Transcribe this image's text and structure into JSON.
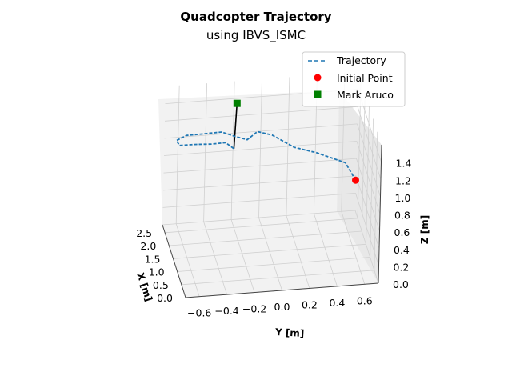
{
  "chart_data": {
    "type": "line",
    "title": "Quadcopter Trajectory",
    "subtitle": "using IBVS_ISMC",
    "xlabel": "X [m]",
    "ylabel": "Y [m]",
    "zlabel": "Z [m]",
    "xlim": [
      0.0,
      2.8
    ],
    "ylim": [
      -0.7,
      0.7
    ],
    "zlim": [
      0.0,
      1.6
    ],
    "x_ticks": [
      "0.0",
      "0.5",
      "1.0",
      "1.5",
      "2.0",
      "2.5"
    ],
    "y_ticks": [
      "−0.6",
      "−0.4",
      "−0.2",
      "0.0",
      "0.2",
      "0.4",
      "0.6"
    ],
    "z_ticks": [
      "0.0",
      "0.2",
      "0.4",
      "0.6",
      "0.8",
      "1.0",
      "1.2",
      "1.4"
    ],
    "grid": true,
    "legend_position": "top-right",
    "series": [
      {
        "name": "Trajectory",
        "style": "dashed",
        "color": "#1f77b4",
        "points": [
          [
            1.6,
            0.62,
            0.72
          ],
          [
            1.7,
            0.55,
            0.9
          ],
          [
            1.9,
            0.35,
            0.98
          ],
          [
            2.1,
            0.2,
            1.0
          ],
          [
            2.3,
            0.05,
            1.1
          ],
          [
            2.4,
            -0.05,
            1.12
          ],
          [
            2.45,
            -0.12,
            1.02
          ],
          [
            2.5,
            -0.2,
            1.05
          ],
          [
            2.55,
            -0.3,
            1.1
          ],
          [
            2.6,
            -0.42,
            1.08
          ],
          [
            2.65,
            -0.55,
            1.06
          ],
          [
            2.68,
            -0.62,
            1.0
          ],
          [
            2.62,
            -0.6,
            0.96
          ],
          [
            2.55,
            -0.5,
            0.98
          ],
          [
            2.45,
            -0.38,
            1.0
          ],
          [
            2.4,
            -0.28,
            1.02
          ],
          [
            2.38,
            -0.22,
            0.95
          ]
        ]
      },
      {
        "name": "Initial Point",
        "style": "marker-circle",
        "color": "#ff0000",
        "points": [
          [
            1.6,
            0.62,
            0.72
          ]
        ]
      },
      {
        "name": "Mark Aruco",
        "style": "marker-square",
        "color": "#008000",
        "points": [
          [
            2.45,
            -0.2,
            1.45
          ]
        ]
      }
    ]
  },
  "colors": {
    "trajectory": "#1f77b4",
    "initial_point": "#ff0000",
    "mark_aruco": "#008000",
    "connector": "#000000"
  }
}
